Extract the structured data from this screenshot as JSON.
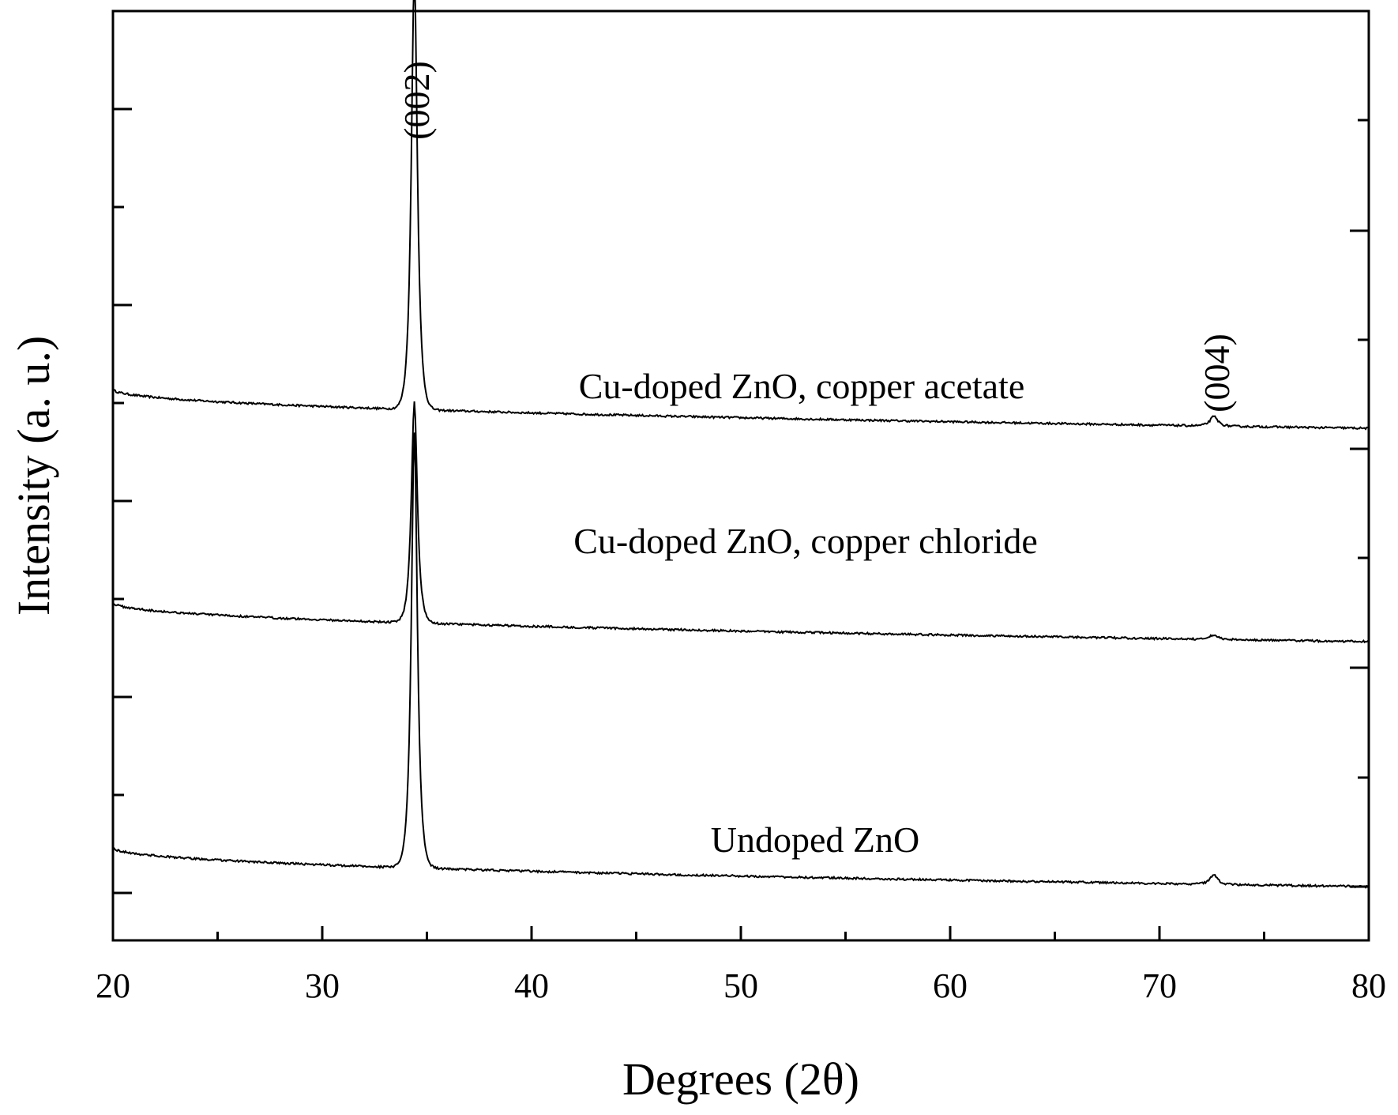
{
  "chart_data": {
    "type": "line",
    "xlabel": "Degrees (2θ)",
    "ylabel": "Intensity (a. u.)",
    "xlim": [
      20,
      80
    ],
    "xticks": [
      20,
      30,
      40,
      50,
      60,
      70,
      80
    ],
    "y_tick_labels_shown": false,
    "grid": false,
    "legend": "none",
    "peaks": [
      {
        "label": "(002)",
        "x": 34.4
      },
      {
        "label": "(004)",
        "x": 72.6
      }
    ],
    "series": [
      {
        "name": "Cu-doped ZnO, copper acetate",
        "offset": 0.58,
        "baseline_start": 0.05,
        "baseline_end": 0.0,
        "peaks": [
          {
            "x": 34.4,
            "height": 0.55,
            "width": 0.23
          },
          {
            "x": 72.6,
            "height": 0.012,
            "width": 0.3
          }
        ],
        "color": "#000000"
      },
      {
        "name": "Cu-doped ZnO, copper chloride",
        "offset": 0.31,
        "baseline_start": 0.05,
        "baseline_end": 0.0,
        "peaks": [
          {
            "x": 34.4,
            "height": 0.28,
            "width": 0.23
          },
          {
            "x": 72.6,
            "height": 0.006,
            "width": 0.3
          }
        ],
        "color": "#000000"
      },
      {
        "name": "Undoped ZnO",
        "offset": 0.0,
        "baseline_start": 0.05,
        "baseline_end": 0.0,
        "peaks": [
          {
            "x": 34.4,
            "height": 0.55,
            "width": 0.23
          },
          {
            "x": 72.6,
            "height": 0.012,
            "width": 0.3
          }
        ],
        "color": "#000000"
      }
    ]
  }
}
